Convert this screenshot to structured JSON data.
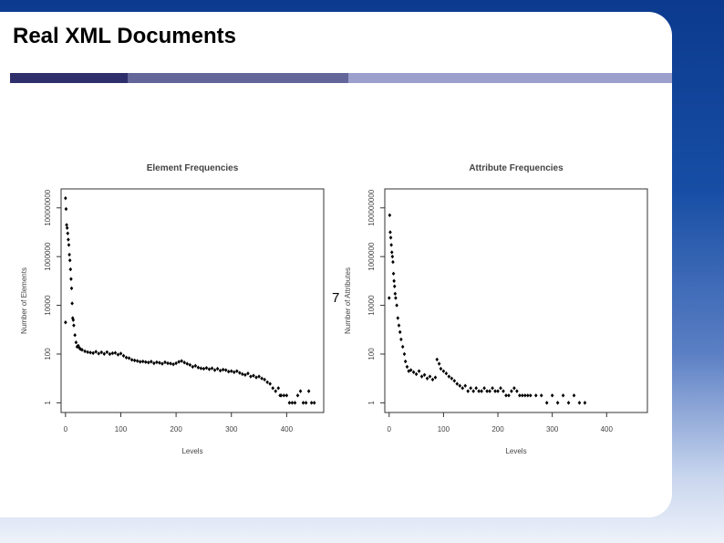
{
  "slide": {
    "title": "Real XML Documents",
    "page_number": "7",
    "accent_colors": [
      "#2e2f6b",
      "#636699",
      "#9b9fcc"
    ]
  },
  "chart_data": [
    {
      "type": "scatter",
      "title": "Element Frequencies",
      "xlabel": "Levels",
      "ylabel": "Number of Elements",
      "y_scale": "log",
      "xlim": [
        -8,
        467
      ],
      "ylim": [
        0.4,
        600000000
      ],
      "xticks": [
        "0",
        "100",
        "200",
        "300",
        "400"
      ],
      "yticks": [
        "1",
        "100",
        "10000",
        "1000000",
        "100000000"
      ],
      "grid": false,
      "marker_color": "#000000",
      "points": [
        [
          0,
          250000000
        ],
        [
          0,
          2000
        ],
        [
          1,
          90000000
        ],
        [
          2,
          20000000
        ],
        [
          3,
          15000000
        ],
        [
          4,
          9000000
        ],
        [
          5,
          5000000
        ],
        [
          6,
          3000000
        ],
        [
          7,
          1200000
        ],
        [
          8,
          700000
        ],
        [
          9,
          300000
        ],
        [
          10,
          120000
        ],
        [
          11,
          50000
        ],
        [
          12,
          12000
        ],
        [
          13,
          3000
        ],
        [
          14,
          2500
        ],
        [
          15,
          1500
        ],
        [
          17,
          600
        ],
        [
          19,
          300
        ],
        [
          21,
          200
        ],
        [
          23,
          220
        ],
        [
          25,
          180
        ],
        [
          27,
          160
        ],
        [
          30,
          150
        ],
        [
          35,
          130
        ],
        [
          40,
          120
        ],
        [
          45,
          115
        ],
        [
          50,
          110
        ],
        [
          55,
          125
        ],
        [
          60,
          105
        ],
        [
          65,
          118
        ],
        [
          70,
          102
        ],
        [
          75,
          120
        ],
        [
          80,
          100
        ],
        [
          85,
          108
        ],
        [
          90,
          112
        ],
        [
          95,
          95
        ],
        [
          100,
          105
        ],
        [
          105,
          85
        ],
        [
          110,
          72
        ],
        [
          115,
          68
        ],
        [
          120,
          58
        ],
        [
          125,
          55
        ],
        [
          130,
          52
        ],
        [
          135,
          48
        ],
        [
          140,
          50
        ],
        [
          145,
          47
        ],
        [
          150,
          45
        ],
        [
          155,
          49
        ],
        [
          160,
          42
        ],
        [
          165,
          46
        ],
        [
          170,
          44
        ],
        [
          175,
          40
        ],
        [
          180,
          46
        ],
        [
          185,
          42
        ],
        [
          190,
          41
        ],
        [
          195,
          38
        ],
        [
          200,
          42
        ],
        [
          205,
          48
        ],
        [
          210,
          52
        ],
        [
          215,
          45
        ],
        [
          220,
          40
        ],
        [
          225,
          36
        ],
        [
          230,
          30
        ],
        [
          235,
          33
        ],
        [
          240,
          28
        ],
        [
          245,
          26
        ],
        [
          250,
          25
        ],
        [
          255,
          27
        ],
        [
          260,
          24
        ],
        [
          265,
          26
        ],
        [
          270,
          22
        ],
        [
          275,
          25
        ],
        [
          280,
          21
        ],
        [
          285,
          23
        ],
        [
          290,
          22
        ],
        [
          295,
          19
        ],
        [
          300,
          20
        ],
        [
          305,
          18
        ],
        [
          310,
          20
        ],
        [
          315,
          17
        ],
        [
          320,
          15
        ],
        [
          325,
          14
        ],
        [
          330,
          16
        ],
        [
          335,
          12
        ],
        [
          340,
          13
        ],
        [
          345,
          11
        ],
        [
          350,
          12
        ],
        [
          355,
          10
        ],
        [
          360,
          9
        ],
        [
          365,
          7
        ],
        [
          370,
          6
        ],
        [
          375,
          4
        ],
        [
          380,
          3
        ],
        [
          385,
          4
        ],
        [
          388,
          2
        ],
        [
          390,
          2
        ],
        [
          395,
          2
        ],
        [
          400,
          2
        ],
        [
          405,
          1
        ],
        [
          410,
          1
        ],
        [
          415,
          1
        ],
        [
          420,
          2
        ],
        [
          425,
          3
        ],
        [
          430,
          1
        ],
        [
          435,
          1
        ],
        [
          440,
          3
        ],
        [
          445,
          1
        ],
        [
          450,
          1
        ]
      ]
    },
    {
      "type": "scatter",
      "title": "Attribute Frequencies",
      "xlabel": "Levels",
      "ylabel": "Number of Attributes",
      "y_scale": "log",
      "xlim": [
        -8,
        475
      ],
      "ylim": [
        0.4,
        600000000
      ],
      "xticks": [
        "0",
        "100",
        "200",
        "300",
        "400"
      ],
      "yticks": [
        "1",
        "100",
        "10000",
        "1000000",
        "100000000"
      ],
      "grid": false,
      "marker_color": "#000000",
      "points": [
        [
          0,
          20000
        ],
        [
          1,
          50000000
        ],
        [
          2,
          10000000
        ],
        [
          3,
          6000000
        ],
        [
          4,
          3000000
        ],
        [
          5,
          1500000
        ],
        [
          6,
          1000000
        ],
        [
          7,
          600000
        ],
        [
          8,
          200000
        ],
        [
          9,
          100000
        ],
        [
          10,
          60000
        ],
        [
          11,
          30000
        ],
        [
          12,
          20000
        ],
        [
          14,
          10000
        ],
        [
          16,
          3000
        ],
        [
          18,
          1500
        ],
        [
          20,
          800
        ],
        [
          22,
          400
        ],
        [
          25,
          200
        ],
        [
          28,
          100
        ],
        [
          30,
          50
        ],
        [
          33,
          30
        ],
        [
          36,
          20
        ],
        [
          40,
          22
        ],
        [
          45,
          18
        ],
        [
          50,
          15
        ],
        [
          55,
          20
        ],
        [
          60,
          12
        ],
        [
          65,
          14
        ],
        [
          70,
          10
        ],
        [
          75,
          12
        ],
        [
          80,
          9
        ],
        [
          85,
          11
        ],
        [
          88,
          60
        ],
        [
          92,
          40
        ],
        [
          95,
          25
        ],
        [
          100,
          20
        ],
        [
          105,
          16
        ],
        [
          110,
          12
        ],
        [
          115,
          10
        ],
        [
          120,
          8
        ],
        [
          125,
          6
        ],
        [
          130,
          5
        ],
        [
          135,
          4
        ],
        [
          140,
          5
        ],
        [
          145,
          3
        ],
        [
          150,
          4
        ],
        [
          155,
          3
        ],
        [
          160,
          4
        ],
        [
          165,
          3
        ],
        [
          170,
          3
        ],
        [
          175,
          4
        ],
        [
          180,
          3
        ],
        [
          185,
          3
        ],
        [
          190,
          4
        ],
        [
          195,
          3
        ],
        [
          200,
          3
        ],
        [
          205,
          4
        ],
        [
          210,
          3
        ],
        [
          215,
          2
        ],
        [
          220,
          2
        ],
        [
          225,
          3
        ],
        [
          230,
          4
        ],
        [
          235,
          3
        ],
        [
          240,
          2
        ],
        [
          245,
          2
        ],
        [
          250,
          2
        ],
        [
          255,
          2
        ],
        [
          260,
          2
        ],
        [
          270,
          2
        ],
        [
          280,
          2
        ],
        [
          290,
          1
        ],
        [
          300,
          2
        ],
        [
          310,
          1
        ],
        [
          320,
          2
        ],
        [
          330,
          1
        ],
        [
          340,
          2
        ],
        [
          350,
          1
        ],
        [
          360,
          1
        ]
      ]
    }
  ]
}
